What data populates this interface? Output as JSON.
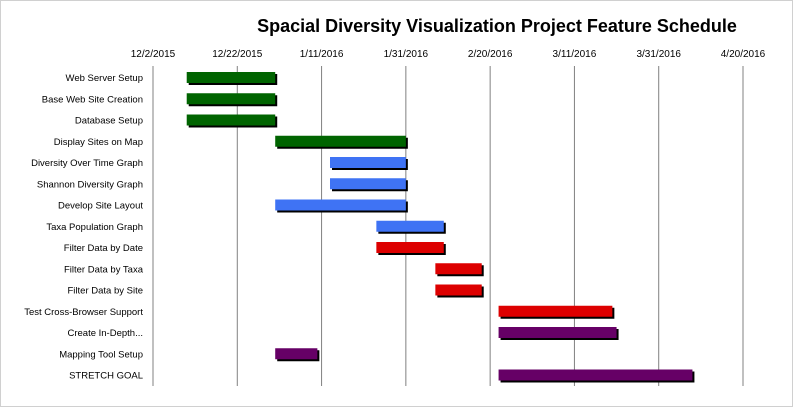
{
  "chart_data": {
    "type": "bar",
    "title": "Spacial Diversity Visualization Project Feature Schedule",
    "x_ticks": [
      "12/2/2015",
      "12/22/2015",
      "1/11/2016",
      "1/31/2016",
      "2/20/2016",
      "3/11/2016",
      "3/31/2016",
      "4/20/2016"
    ],
    "xlim": [
      "2015-12-02",
      "2016-04-20"
    ],
    "grid": "vertical",
    "tasks": [
      {
        "label": "Web Server Setup",
        "start": "2015-12-10",
        "end": "2015-12-31",
        "color": "#006400"
      },
      {
        "label": "Base Web Site Creation",
        "start": "2015-12-10",
        "end": "2015-12-31",
        "color": "#006400"
      },
      {
        "label": "Database Setup",
        "start": "2015-12-10",
        "end": "2015-12-31",
        "color": "#006400"
      },
      {
        "label": "Display Sites on Map",
        "start": "2015-12-31",
        "end": "2016-01-31",
        "color": "#006400"
      },
      {
        "label": "Diversity Over Time Graph",
        "start": "2016-01-13",
        "end": "2016-01-31",
        "color": "#3f73f4"
      },
      {
        "label": "Shannon Diversity Graph",
        "start": "2016-01-13",
        "end": "2016-01-31",
        "color": "#3f73f4"
      },
      {
        "label": "Develop Site Layout",
        "start": "2015-12-31",
        "end": "2016-01-31",
        "color": "#3f73f4"
      },
      {
        "label": "Taxa Population Graph",
        "start": "2016-01-24",
        "end": "2016-02-09",
        "color": "#3f73f4"
      },
      {
        "label": "Filter Data by Date",
        "start": "2016-01-24",
        "end": "2016-02-09",
        "color": "#dd0000"
      },
      {
        "label": "Filter Data by Taxa",
        "start": "2016-02-07",
        "end": "2016-02-18",
        "color": "#dd0000"
      },
      {
        "label": "Filter Data by Site",
        "start": "2016-02-07",
        "end": "2016-02-18",
        "color": "#dd0000"
      },
      {
        "label": "Test Cross-Browser Support",
        "start": "2016-02-22",
        "end": "2016-03-20",
        "color": "#dd0000"
      },
      {
        "label": "Create In-Depth...",
        "start": "2016-02-22",
        "end": "2016-03-21",
        "color": "#660066"
      },
      {
        "label": "Mapping Tool Setup",
        "start": "2015-12-31",
        "end": "2016-01-10",
        "color": "#660066"
      },
      {
        "label": "STRETCH GOAL",
        "start": "2016-02-22",
        "end": "2016-04-08",
        "color": "#660066"
      }
    ]
  }
}
